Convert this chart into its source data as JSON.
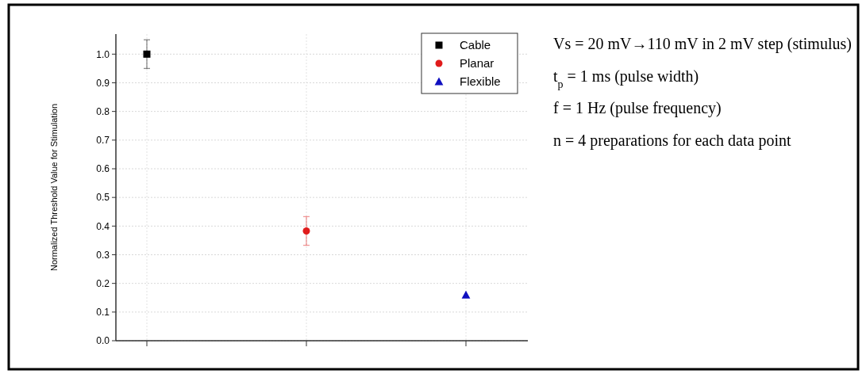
{
  "chart_data": {
    "type": "scatter",
    "ylabel": "Normalized Threshold Value for Stimulation",
    "categories": [
      null,
      null,
      null
    ],
    "ylim": [
      0,
      1.07
    ],
    "yticks": [
      {
        "value": 0,
        "label": "0.0"
      },
      0.1,
      0.2,
      0.3,
      0.4,
      0.5,
      0.6,
      0.7,
      0.8,
      0.9,
      {
        "value": 1,
        "label": "1.0"
      }
    ],
    "grid": true,
    "legend": "top right",
    "series": [
      {
        "name": "Cable",
        "color": "#000000",
        "marker": "square",
        "values": [
          1.0,
          null,
          null
        ],
        "errors": [
          0.05,
          null,
          null
        ]
      },
      {
        "name": "Planar",
        "color": "#e01b1b",
        "marker": "circle",
        "values": [
          null,
          0.383,
          null
        ],
        "errors": [
          null,
          0.05,
          null
        ]
      },
      {
        "name": "Flexible",
        "color": "#1010c0",
        "marker": "triangle",
        "values": [
          null,
          null,
          0.16
        ]
      }
    ],
    "annotations": [
      "Vs = 20 mV→110 mV in 2 mV step (stimulus)",
      "t$_{p}$ = 1 ms (pulse width)",
      "f = 1 Hz (pulse frequency)",
      "n = 4 preparations for each data point"
    ]
  }
}
